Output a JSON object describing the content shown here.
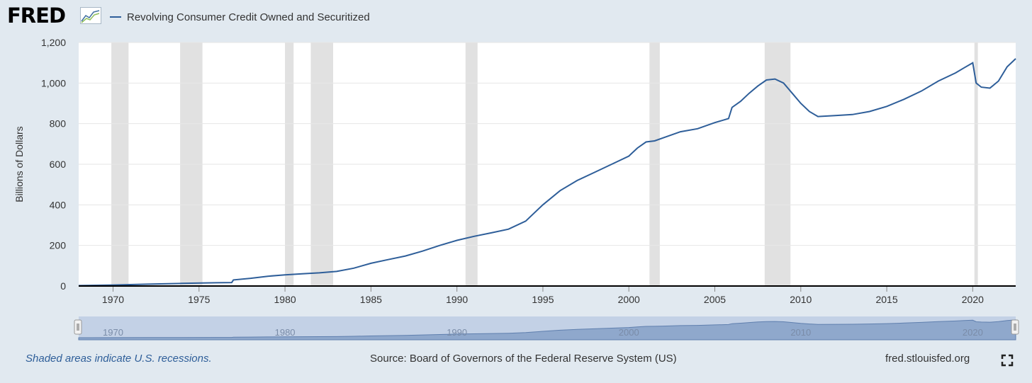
{
  "brand": {
    "logo_text": "FRED",
    "logo_graph_icon": "fred-graph-icon"
  },
  "legend": {
    "label": "Revolving Consumer Credit Owned and Securitized",
    "color": "#2e5e99"
  },
  "footer": {
    "recession_note": "Shaded areas indicate U.S. recessions.",
    "source": "Source: Board of Governors of the Federal Reserve System (US)",
    "url": "fred.stlouisfed.org",
    "fullscreen_icon": "fullscreen-icon"
  },
  "navigator": {
    "tick_labels": [
      "1970",
      "1980",
      "1990",
      "2000",
      "2010",
      "2020"
    ]
  },
  "colors": {
    "line": "#2e5e99",
    "recession": "#e1e1e1",
    "page_bg": "#e1e9f0",
    "navigator_fill": "#c3d1e6",
    "navigator_area": "#8fa8cc"
  },
  "chart_data": {
    "type": "line",
    "title": "",
    "xlabel": "",
    "ylabel": "Billions of Dollars",
    "xlim": [
      1968.0,
      2022.5
    ],
    "ylim": [
      0,
      1200
    ],
    "yticks": [
      0,
      200,
      400,
      600,
      800,
      1000,
      1200
    ],
    "ytick_labels": [
      "0",
      "200",
      "400",
      "600",
      "800",
      "1,000",
      "1,200"
    ],
    "xticks": [
      1970,
      1975,
      1980,
      1985,
      1990,
      1995,
      2000,
      2005,
      2010,
      2015,
      2020
    ],
    "xtick_labels": [
      "1970",
      "1975",
      "1980",
      "1985",
      "1990",
      "1995",
      "2000",
      "2005",
      "2010",
      "2015",
      "2020"
    ],
    "grid": true,
    "recessions": [
      [
        1969.9,
        1970.9
      ],
      [
        1973.9,
        1975.2
      ],
      [
        1980.0,
        1980.5
      ],
      [
        1981.5,
        1982.8
      ],
      [
        1990.5,
        1991.2
      ],
      [
        2001.2,
        2001.8
      ],
      [
        2007.9,
        2009.4
      ],
      [
        2020.1,
        2020.3
      ]
    ],
    "series": [
      {
        "name": "Revolving Consumer Credit Owned and Securitized",
        "x": [
          1968,
          1970,
          1972,
          1974,
          1976,
          1976.9,
          1977.0,
          1978,
          1979,
          1980,
          1981,
          1982,
          1983,
          1984,
          1985,
          1986,
          1987,
          1988,
          1989,
          1990,
          1991,
          1992,
          1993,
          1994,
          1995,
          1996,
          1997,
          1998,
          1999,
          2000,
          2000.5,
          2001,
          2001.5,
          2002,
          2003,
          2004,
          2005,
          2005.8,
          2006.0,
          2006.5,
          2007,
          2007.5,
          2008,
          2008.5,
          2009,
          2009.5,
          2010,
          2010.5,
          2011,
          2012,
          2013,
          2014,
          2015,
          2016,
          2017,
          2018,
          2019,
          2019.5,
          2020.0,
          2020.2,
          2020.5,
          2021,
          2021.5,
          2022,
          2022.5
        ],
        "y": [
          2,
          5,
          9,
          13,
          16,
          17,
          30,
          38,
          48,
          55,
          60,
          65,
          72,
          88,
          112,
          130,
          148,
          172,
          200,
          225,
          245,
          262,
          280,
          320,
          400,
          470,
          520,
          560,
          600,
          640,
          680,
          710,
          715,
          730,
          760,
          775,
          805,
          825,
          880,
          910,
          950,
          985,
          1015,
          1020,
          1000,
          950,
          900,
          860,
          835,
          840,
          845,
          860,
          885,
          920,
          960,
          1010,
          1050,
          1075,
          1100,
          1000,
          980,
          975,
          1010,
          1080,
          1120
        ]
      }
    ]
  }
}
